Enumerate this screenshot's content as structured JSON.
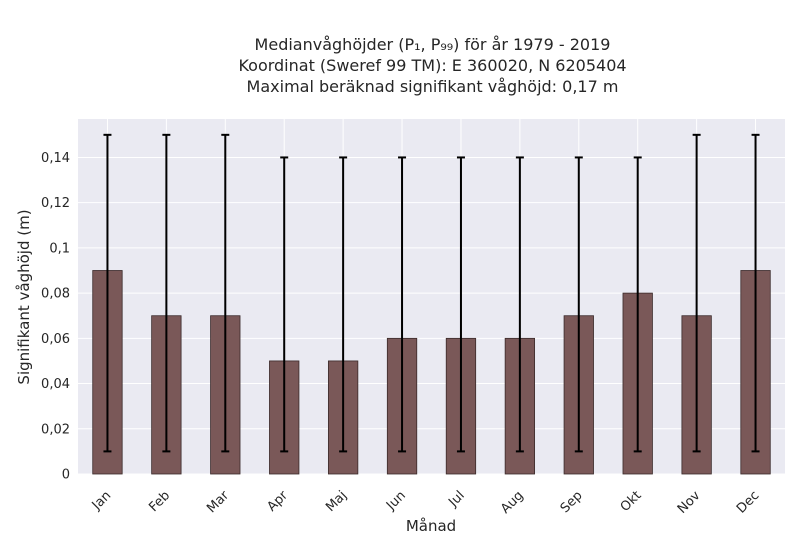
{
  "chart_data": {
    "type": "bar",
    "title_lines": [
      "Medianvåghöjder (P₁, P₉₉) för år 1979 - 2019",
      "Koordinat (Sweref 99 TM): E 360020, N 6205404",
      "Maximal beräknad signifikant våghöjd: 0,17 m"
    ],
    "xlabel": "Månad",
    "ylabel": "Signifikant våghöjd (m)",
    "categories": [
      "Jan",
      "Feb",
      "Mar",
      "Apr",
      "Maj",
      "Jun",
      "Jul",
      "Aug",
      "Sep",
      "Okt",
      "Nov",
      "Dec"
    ],
    "values": [
      0.09,
      0.07,
      0.07,
      0.05,
      0.05,
      0.06,
      0.06,
      0.06,
      0.07,
      0.08,
      0.07,
      0.09
    ],
    "err_low": [
      0.01,
      0.01,
      0.01,
      0.01,
      0.01,
      0.01,
      0.01,
      0.01,
      0.01,
      0.01,
      0.01,
      0.01
    ],
    "err_high": [
      0.15,
      0.15,
      0.15,
      0.14,
      0.14,
      0.14,
      0.14,
      0.14,
      0.14,
      0.14,
      0.15,
      0.15
    ],
    "ylim": [
      0,
      0.157
    ],
    "yticks": [
      0,
      0.02,
      0.04,
      0.06,
      0.08,
      0.1,
      0.12,
      0.14
    ],
    "ytick_labels": [
      "0",
      "0,02",
      "0,04",
      "0,06",
      "0,08",
      "0,1",
      "0,12",
      "0,14"
    ],
    "grid": true,
    "colors": {
      "bar": "#7a5858",
      "bar_edge": "#3a2a2a",
      "errorbar": "#000000",
      "plot_background": "#eaeaf2",
      "grid": "#ffffff"
    }
  }
}
